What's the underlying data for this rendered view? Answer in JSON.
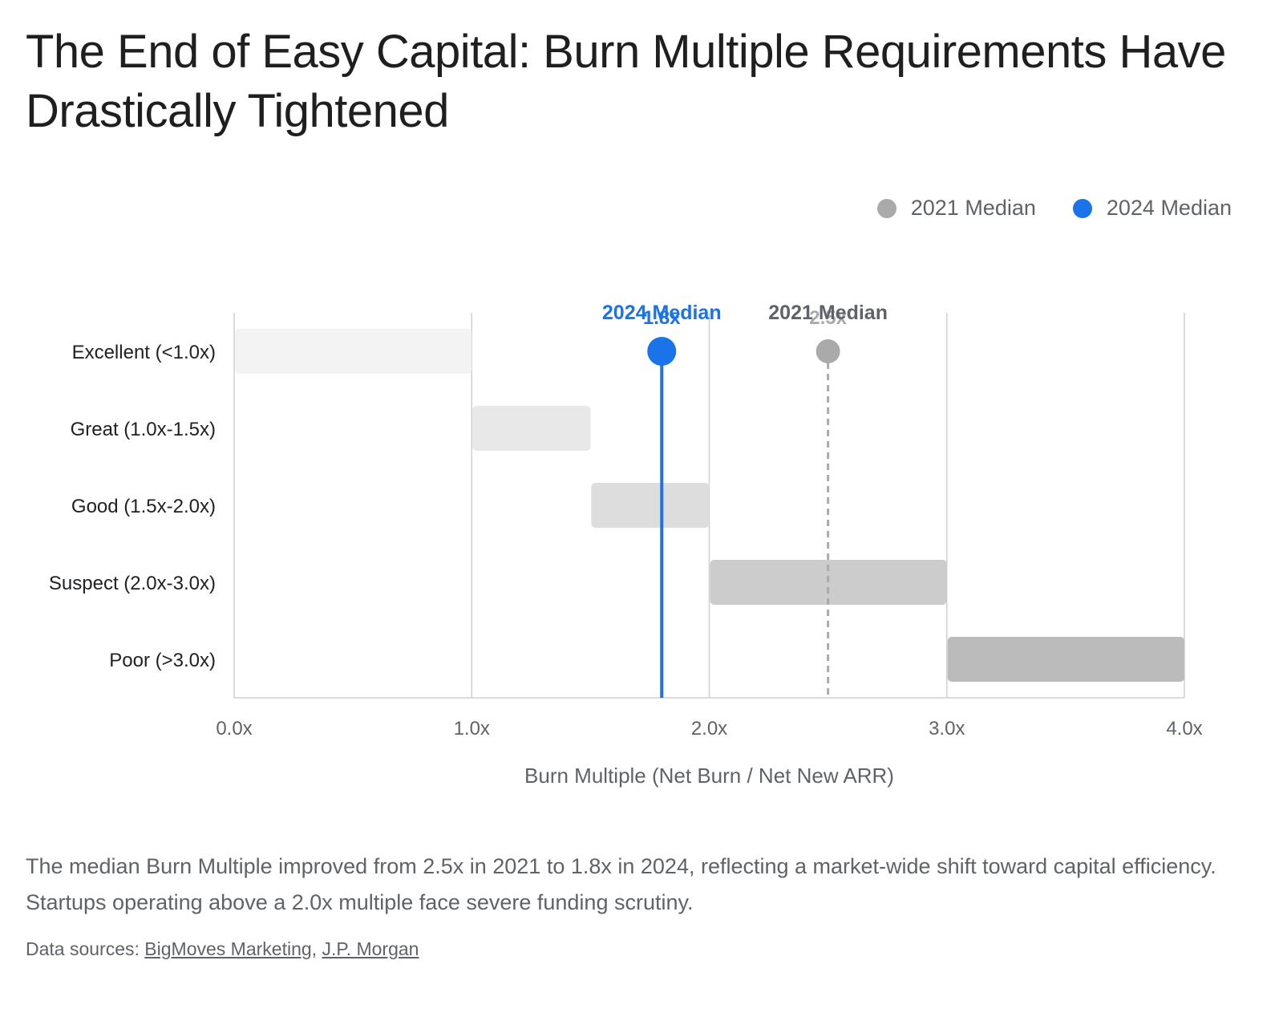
{
  "title": "The End of Easy Capital: Burn Multiple Requirements Have Drastically Tightened",
  "legend": [
    {
      "label": "2021 Median",
      "color": "#aaaaaa"
    },
    {
      "label": "2024 Median",
      "color": "#1a73e8"
    }
  ],
  "chart_data": {
    "type": "bar",
    "orientation": "horizontal-range",
    "categories": [
      "Excellent (<1.0x)",
      "Great (1.0x-1.5x)",
      "Good (1.5x-2.0x)",
      "Suspect (2.0x-3.0x)",
      "Poor (>3.0x)"
    ],
    "ranges": [
      [
        0,
        1.0
      ],
      [
        1.0,
        1.5
      ],
      [
        1.5,
        2.0
      ],
      [
        2.0,
        3.0
      ],
      [
        3.0,
        4.0
      ]
    ],
    "range_colors": [
      "#f3f3f3",
      "#e8e8e8",
      "#dddddd",
      "#cccccc",
      "#bbbbbb"
    ],
    "xlim": [
      0,
      4.0
    ],
    "xticks": [
      0,
      1,
      2,
      3,
      4
    ],
    "xtick_labels": [
      "0.0x",
      "1.0x",
      "2.0x",
      "3.0x",
      "4.0x"
    ],
    "xlabel": "Burn Multiple (Net Burn / Net New ARR)",
    "ylabel": "",
    "grid": true,
    "legend_position": "top-right",
    "markers": [
      {
        "name": "2024 Median",
        "value": 1.8,
        "value_label": "1.8x",
        "color": "#1a73e8",
        "label_color": "#1a73e8",
        "line": "solid"
      },
      {
        "name": "2021 Median",
        "value": 2.5,
        "value_label": "2.5x",
        "color": "#aaaaaa",
        "label_color": "#5f6368",
        "line": "dashed"
      }
    ]
  },
  "description": "The median Burn Multiple improved from 2.5x in 2021 to 1.8x in 2024, reflecting a market-wide shift toward capital efficiency. Startups operating above a 2.0x multiple face severe funding scrutiny.",
  "sources": {
    "prefix": "Data sources: ",
    "links": [
      "BigMoves Marketing",
      "J.P. Morgan"
    ],
    "separator": ", "
  }
}
